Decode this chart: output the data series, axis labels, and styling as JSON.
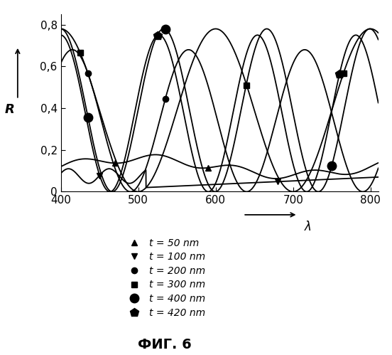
{
  "x_min": 400,
  "x_max": 810,
  "y_min": 0,
  "y_max": 0.85,
  "x_ticks": [
    400,
    500,
    600,
    700,
    800
  ],
  "y_ticks": [
    0,
    0.2,
    0.4,
    0.6,
    0.8
  ],
  "y_tick_labels": [
    "0",
    "0,2",
    "0,4",
    "0,6",
    "0,8"
  ],
  "legend_entries": [
    {
      "label": "t = 50 nm",
      "marker": "^",
      "ms": 6
    },
    {
      "label": "t = 100 nm",
      "marker": "v",
      "ms": 6
    },
    {
      "label": "t = 200 nm",
      "marker": "o",
      "ms": 6
    },
    {
      "label": "t = 300 nm",
      "marker": "s",
      "ms": 6
    },
    {
      "label": "t = 400 nm",
      "marker": "o",
      "ms": 9
    },
    {
      "label": "t = 420 nm",
      "marker": "p",
      "ms": 9
    }
  ],
  "figure_label": "ФИГ. 6",
  "background_color": "#ffffff",
  "fontsize_ticks": 11,
  "fontsize_legend": 10,
  "fontsize_caption": 14
}
